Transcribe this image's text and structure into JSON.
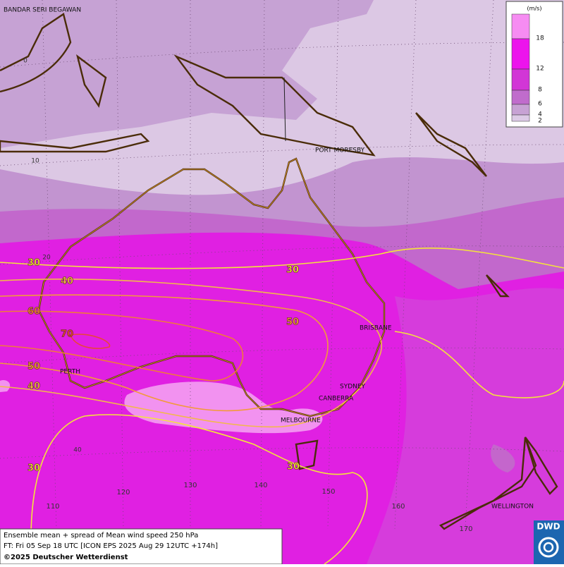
{
  "map": {
    "cities": [
      "BANDAR SERI BEGAWAN",
      "PORT MORESBY",
      "BRISBANE",
      "SYDNEY",
      "CANBERRA",
      "MELBOURNE",
      "PERTH",
      "WELLINGTON"
    ],
    "lat_labels": [
      0,
      10,
      20,
      40
    ],
    "lon_labels": [
      110,
      120,
      130,
      140,
      150,
      160,
      170
    ],
    "contours": [
      {
        "label": 30,
        "color": "#f4e43a"
      },
      {
        "label": 40,
        "color": "#f2b84a"
      },
      {
        "label": 60,
        "color": "#f07a3a"
      },
      {
        "label": 70,
        "color": "#e8463a"
      },
      {
        "label": 50,
        "color": "#f29a3a"
      },
      {
        "label": 40,
        "color": "#f2b84a"
      },
      {
        "label": 30,
        "color": "#f4e43a"
      },
      {
        "label": 30,
        "color": "#f4e43a"
      },
      {
        "label": 50,
        "color": "#f29a3a"
      },
      {
        "label": 30,
        "color": "#f4e43a"
      }
    ]
  },
  "legend": {
    "unit": "(m/s)",
    "levels": [
      {
        "value": 18,
        "color": "#f68cf2"
      },
      {
        "value": 12,
        "color": "#ec14ec"
      },
      {
        "value": 8,
        "color": "#d236d6"
      },
      {
        "value": 6,
        "color": "#c06ccc"
      },
      {
        "value": 4,
        "color": "#c7a2d4"
      },
      {
        "value": 2,
        "color": "#dccae6"
      }
    ]
  },
  "footer": {
    "line1": "Ensemble mean + spread of Mean wind speed 250 hPa",
    "line2": "FT: Fri 05 Sep 18 UTC [ICON EPS 2025 Aug 29 12UTC +174h]",
    "line3": "©2025 Deutscher Wetterdienst",
    "logo": "DWD"
  }
}
